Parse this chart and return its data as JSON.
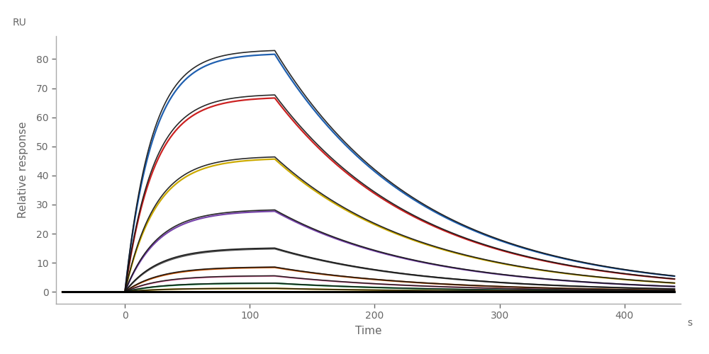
{
  "xlabel": "Time",
  "ylabel": "Relative response",
  "ylabel_top": "RU",
  "xlabel_unit": "s",
  "xlim": [
    -55,
    445
  ],
  "ylim": [
    -4,
    88
  ],
  "xticks": [
    0,
    100,
    200,
    300,
    400
  ],
  "yticks": [
    0,
    10,
    20,
    30,
    40,
    50,
    60,
    70,
    80
  ],
  "assoc_start": 0,
  "assoc_end": 120,
  "dissoc_end": 440,
  "curves": [
    {
      "color": "#2060b0",
      "peak": 82,
      "kd": 0.0085
    },
    {
      "color": "#cc2222",
      "peak": 67,
      "kd": 0.0085
    },
    {
      "color": "#ccaa00",
      "peak": 46,
      "kd": 0.0085
    },
    {
      "color": "#7744aa",
      "peak": 28,
      "kd": 0.0085
    },
    {
      "color": "#555555",
      "peak": 15,
      "kd": 0.0085
    },
    {
      "color": "#cc5500",
      "peak": 8.5,
      "kd": 0.0085
    },
    {
      "color": "#ff88bb",
      "peak": 5.5,
      "kd": 0.0085
    },
    {
      "color": "#22aa55",
      "peak": 3.0,
      "kd": 0.0085
    },
    {
      "color": "#ddaa00",
      "peak": 1.2,
      "kd": 0.0085
    },
    {
      "color": "#000000",
      "peak": 0.0,
      "kd": 0.0
    }
  ],
  "fit_color": "#111111",
  "background_color": "#ffffff",
  "text_color": "#666666",
  "spine_color": "#aaaaaa",
  "lw_data": 1.6,
  "lw_fit": 1.2
}
